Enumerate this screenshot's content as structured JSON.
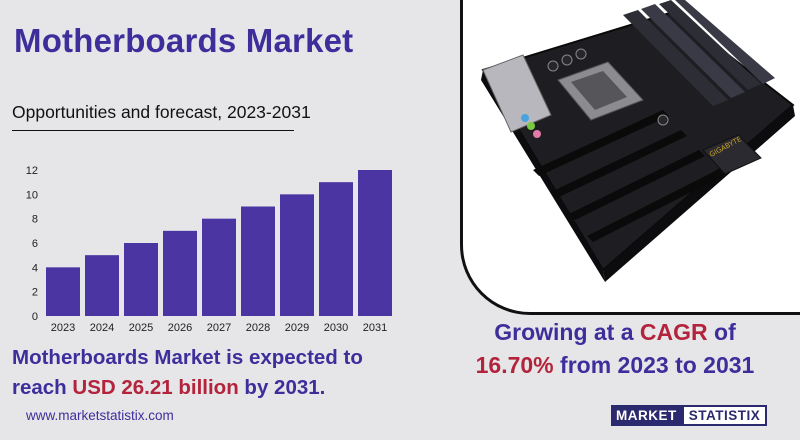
{
  "title": "Motherboards Market",
  "subtitle": "Opportunities and forecast, 2023-2031",
  "chart_data": {
    "type": "bar",
    "categories": [
      "2023",
      "2024",
      "2025",
      "2026",
      "2027",
      "2028",
      "2029",
      "2030",
      "2031"
    ],
    "values": [
      4,
      5,
      6,
      7,
      8,
      9,
      10,
      11,
      12
    ],
    "ylim": [
      0,
      12
    ],
    "yticks": [
      0,
      2,
      4,
      6,
      8,
      10,
      12
    ],
    "bar_color": "#4b35a3",
    "grid": false
  },
  "summary": {
    "line1": "Motherboards Market is expected to",
    "line2_prefix": "reach ",
    "line2_highlight": "USD 26.21 billion",
    "line2_suffix": " by 2031."
  },
  "website": "www.marketstatistix.com",
  "growth": {
    "prefix": "Growing at a ",
    "highlight1": "CAGR",
    "mid": " of",
    "highlight2": "16.70%",
    "suffix": " from 2023 to 2031"
  },
  "logo": {
    "part1": "MARKET",
    "part2": "STATISTIX"
  },
  "photo": {
    "icon": "motherboard-photo",
    "brand_text": "GIGABYTE"
  },
  "colors": {
    "accent": "#3d2e9b",
    "highlight": "#b3243c",
    "background": "#e6e6e9"
  }
}
